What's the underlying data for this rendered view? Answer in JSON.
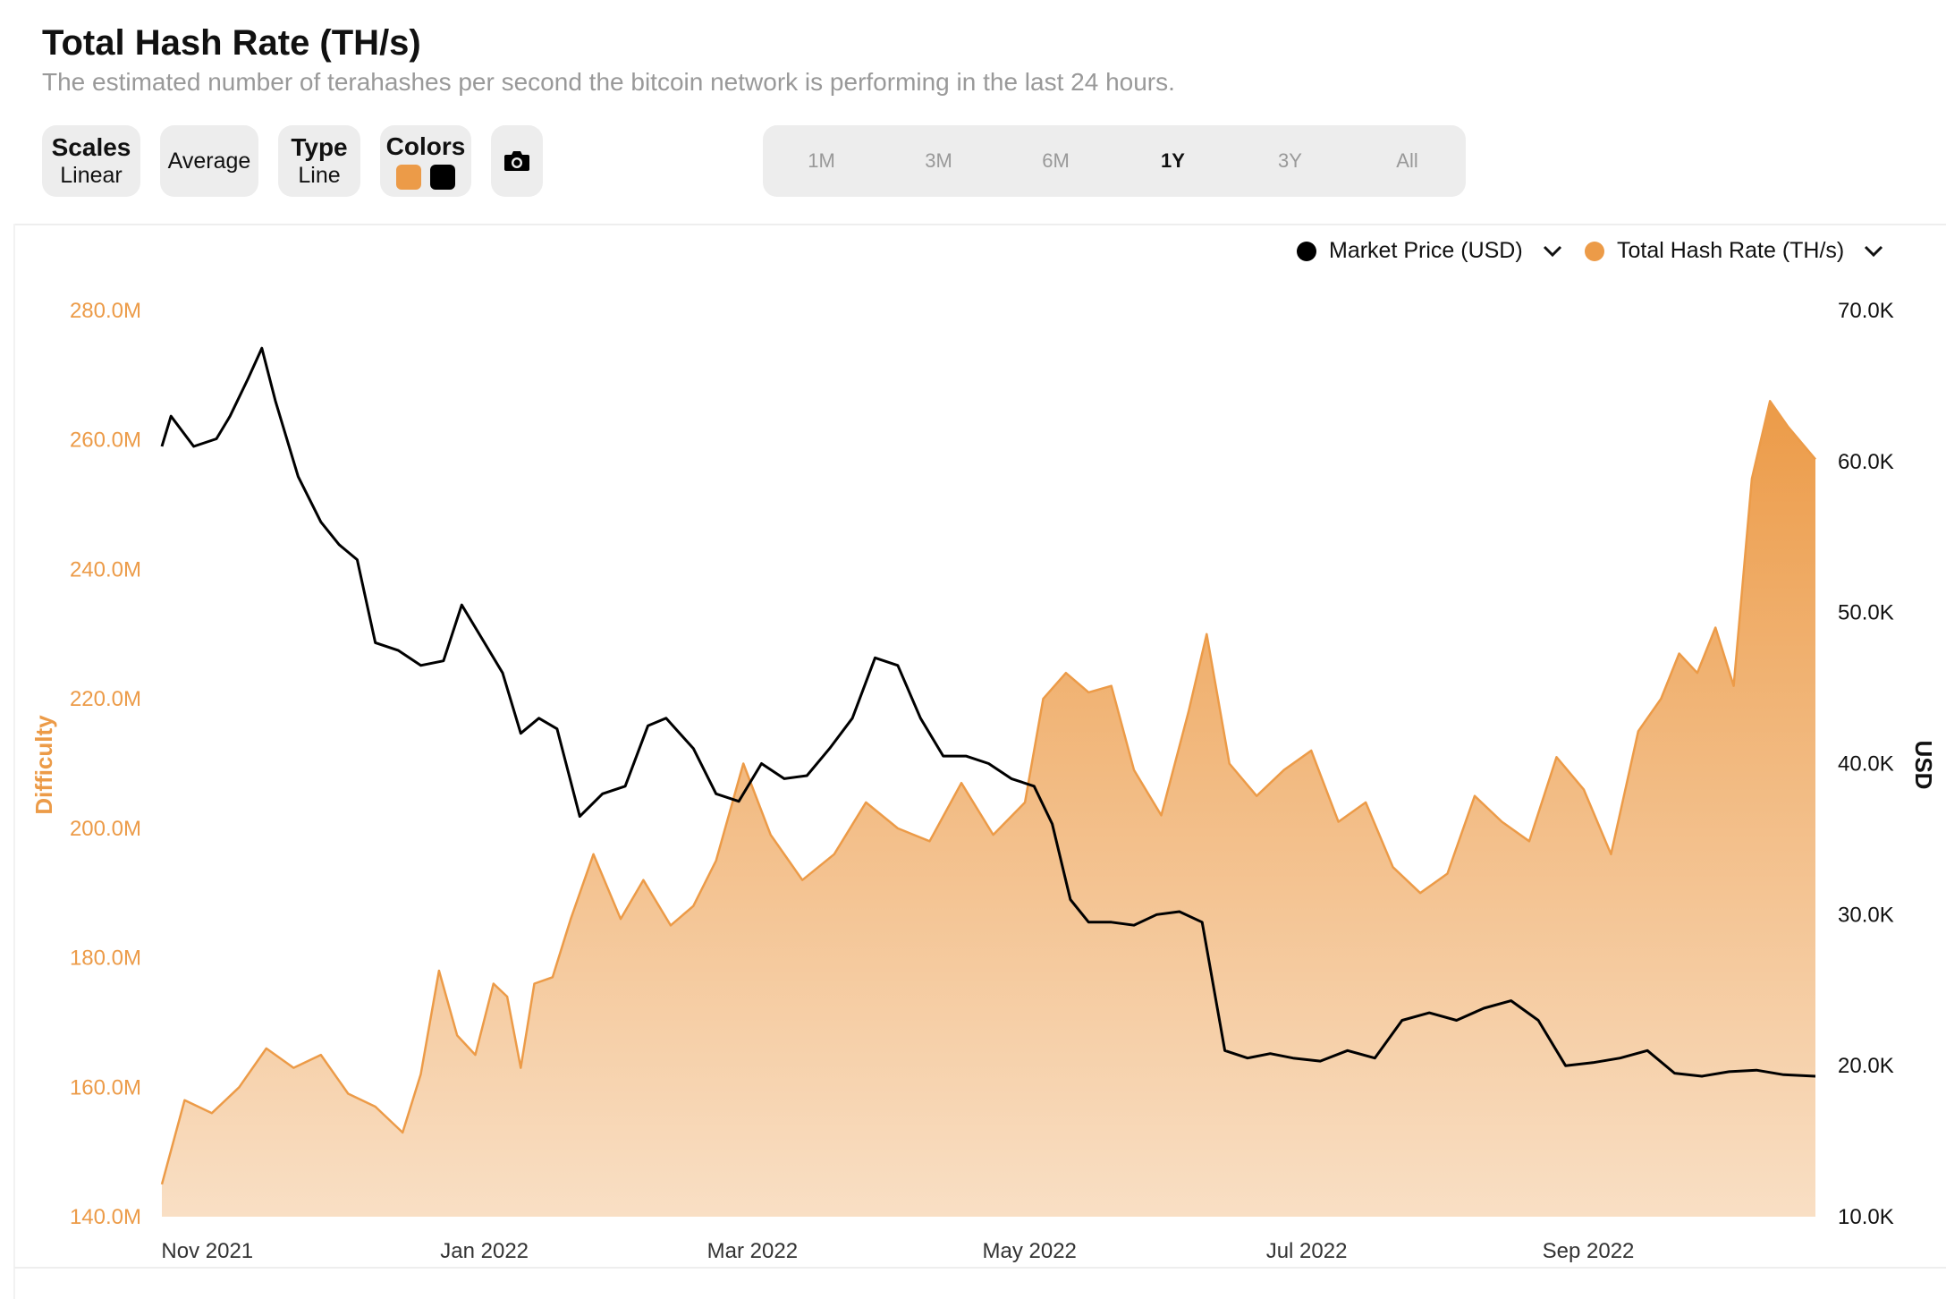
{
  "header": {
    "title": "Total Hash Rate (TH/s)",
    "subtitle": "The estimated number of terahashes per second the bitcoin network is performing in the last 24 hours."
  },
  "toolbar": {
    "scales_label": "Scales",
    "scales_value": "Linear",
    "average_label": "Average",
    "type_label": "Type",
    "type_value": "Line",
    "colors_label": "Colors",
    "color_primary": "#ec9b48",
    "color_secondary": "#000000",
    "camera_icon": "camera-icon",
    "ranges": [
      "1M",
      "3M",
      "6M",
      "1Y",
      "3Y",
      "All"
    ],
    "active_range": "1Y"
  },
  "legend": {
    "market_price": "Market Price (USD)",
    "hash_rate": "Total Hash Rate (TH/s)",
    "chevron_icon": "chevron-down-icon"
  },
  "chart_data": {
    "type": "area",
    "left_axis": {
      "label": "Difficulty",
      "ticks": [
        "280.0M",
        "260.0M",
        "240.0M",
        "220.0M",
        "200.0M",
        "180.0M",
        "160.0M",
        "140.0M"
      ],
      "range": [
        140,
        280
      ],
      "unit": "M"
    },
    "right_axis": {
      "label": "USD",
      "ticks": [
        "70.0K",
        "60.0K",
        "50.0K",
        "40.0K",
        "30.0K",
        "20.0K",
        "10.0K"
      ],
      "range": [
        10,
        70
      ],
      "unit": "K"
    },
    "x_ticks": [
      "Nov 2021",
      "Jan 2022",
      "Mar 2022",
      "May 2022",
      "Jul 2022",
      "Sep 2022"
    ],
    "x_range": [
      "2021-10-22",
      "2022-10-21"
    ],
    "series": [
      {
        "name": "Total Hash Rate (TH/s)",
        "axis": "left",
        "color": "#ec9b48",
        "x": [
          "2021-10-22",
          "2021-10-27",
          "2021-11-02",
          "2021-11-08",
          "2021-11-14",
          "2021-11-20",
          "2021-11-26",
          "2021-12-02",
          "2021-12-08",
          "2021-12-14",
          "2021-12-18",
          "2021-12-22",
          "2021-12-26",
          "2021-12-30",
          "2022-01-03",
          "2022-01-06",
          "2022-01-09",
          "2022-01-12",
          "2022-01-16",
          "2022-01-20",
          "2022-01-25",
          "2022-01-31",
          "2022-02-05",
          "2022-02-11",
          "2022-02-16",
          "2022-02-21",
          "2022-02-27",
          "2022-03-05",
          "2022-03-12",
          "2022-03-19",
          "2022-03-26",
          "2022-04-02",
          "2022-04-09",
          "2022-04-16",
          "2022-04-23",
          "2022-04-30",
          "2022-05-04",
          "2022-05-09",
          "2022-05-14",
          "2022-05-19",
          "2022-05-24",
          "2022-05-30",
          "2022-06-05",
          "2022-06-09",
          "2022-06-14",
          "2022-06-20",
          "2022-06-26",
          "2022-07-02",
          "2022-07-08",
          "2022-07-14",
          "2022-07-20",
          "2022-07-26",
          "2022-08-01",
          "2022-08-07",
          "2022-08-13",
          "2022-08-19",
          "2022-08-25",
          "2022-08-31",
          "2022-09-06",
          "2022-09-12",
          "2022-09-17",
          "2022-09-21",
          "2022-09-25",
          "2022-09-29",
          "2022-10-03",
          "2022-10-07",
          "2022-10-11",
          "2022-10-15",
          "2022-10-21"
        ],
        "values": [
          145,
          158,
          156,
          160,
          166,
          163,
          165,
          159,
          157,
          153,
          162,
          178,
          168,
          165,
          176,
          174,
          163,
          176,
          177,
          186,
          196,
          186,
          192,
          185,
          188,
          195,
          210,
          199,
          192,
          196,
          204,
          200,
          198,
          207,
          199,
          204,
          220,
          224,
          221,
          222,
          209,
          202,
          218,
          230,
          210,
          205,
          209,
          212,
          201,
          204,
          194,
          190,
          193,
          205,
          201,
          198,
          211,
          206,
          196,
          215,
          220,
          227,
          224,
          231,
          222,
          254,
          266,
          262,
          257
        ]
      },
      {
        "name": "Market Price (USD)",
        "axis": "right",
        "color": "#000000",
        "x": [
          "2021-10-22",
          "2021-10-24",
          "2021-10-29",
          "2021-11-03",
          "2021-11-06",
          "2021-11-10",
          "2021-11-13",
          "2021-11-16",
          "2021-11-21",
          "2021-11-26",
          "2021-11-30",
          "2021-12-04",
          "2021-12-08",
          "2021-12-13",
          "2021-12-18",
          "2021-12-23",
          "2021-12-27",
          "2022-01-01",
          "2022-01-05",
          "2022-01-09",
          "2022-01-13",
          "2022-01-17",
          "2022-01-22",
          "2022-01-27",
          "2022-02-01",
          "2022-02-06",
          "2022-02-10",
          "2022-02-16",
          "2022-02-21",
          "2022-02-26",
          "2022-03-03",
          "2022-03-08",
          "2022-03-13",
          "2022-03-18",
          "2022-03-23",
          "2022-03-28",
          "2022-04-02",
          "2022-04-07",
          "2022-04-12",
          "2022-04-17",
          "2022-04-22",
          "2022-04-27",
          "2022-05-02",
          "2022-05-06",
          "2022-05-10",
          "2022-05-14",
          "2022-05-19",
          "2022-05-24",
          "2022-05-29",
          "2022-06-03",
          "2022-06-08",
          "2022-06-13",
          "2022-06-18",
          "2022-06-23",
          "2022-06-28",
          "2022-07-04",
          "2022-07-10",
          "2022-07-16",
          "2022-07-22",
          "2022-07-28",
          "2022-08-03",
          "2022-08-09",
          "2022-08-15",
          "2022-08-21",
          "2022-08-27",
          "2022-09-02",
          "2022-09-08",
          "2022-09-14",
          "2022-09-20",
          "2022-09-26",
          "2022-10-02",
          "2022-10-08",
          "2022-10-14",
          "2022-10-21"
        ],
        "values": [
          61.0,
          63.0,
          61.0,
          61.5,
          63.0,
          65.5,
          67.5,
          64.0,
          59.0,
          56.0,
          54.5,
          53.5,
          48.0,
          47.5,
          46.5,
          46.8,
          50.5,
          48.0,
          46.0,
          42.0,
          43.0,
          42.3,
          36.5,
          38.0,
          38.5,
          42.5,
          43.0,
          41.0,
          38.0,
          37.5,
          40.0,
          39.0,
          39.2,
          41.0,
          43.0,
          47.0,
          46.5,
          43.0,
          40.5,
          40.5,
          40.0,
          39.0,
          38.5,
          36.0,
          31.0,
          29.5,
          29.5,
          29.3,
          30.0,
          30.2,
          29.5,
          21.0,
          20.5,
          20.8,
          20.5,
          20.3,
          21.0,
          20.5,
          23.0,
          23.5,
          23.0,
          23.8,
          24.3,
          23.0,
          20.0,
          20.2,
          20.5,
          21.0,
          19.5,
          19.3,
          19.6,
          19.7,
          19.4,
          19.3
        ]
      }
    ],
    "grid": false,
    "legend_position": "top-right"
  }
}
